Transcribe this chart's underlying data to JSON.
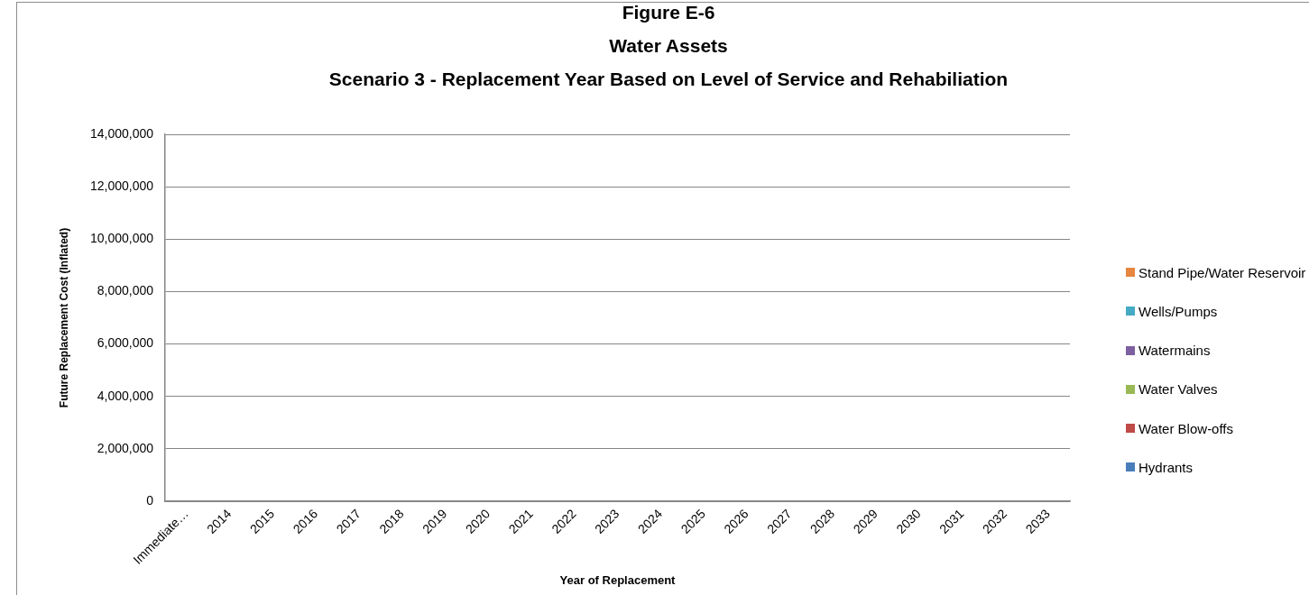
{
  "chart_data": {
    "type": "bar",
    "title": "Figure E-6\nWater Assets\nScenario 3 - Replacement Year Based on Level of Service and Rehabiliation",
    "xlabel": "Year of Replacement",
    "ylabel": "Future Replacement Cost (Inflated)",
    "categories": [
      "Immediate…",
      "2014",
      "2015",
      "2016",
      "2017",
      "2018",
      "2019",
      "2020",
      "2021",
      "2022",
      "2023",
      "2024",
      "2025",
      "2026",
      "2027",
      "2028",
      "2029",
      "2030",
      "2031",
      "2032",
      "2033"
    ],
    "series": [
      {
        "name": "Hydrants",
        "color": "#4a7ebb",
        "values": [
          0,
          0,
          0,
          0,
          0,
          0,
          0,
          0,
          0,
          0,
          0,
          0,
          0,
          0,
          0,
          0,
          0,
          0,
          0,
          0,
          0
        ]
      },
      {
        "name": "Water Blow-offs",
        "color": "#be4b48",
        "values": [
          0,
          0,
          0,
          0,
          0,
          0,
          0,
          0,
          0,
          0,
          0,
          0,
          0,
          0,
          0,
          0,
          0,
          0,
          0,
          0,
          0
        ]
      },
      {
        "name": "Water Valves",
        "color": "#98b954",
        "values": [
          0,
          0,
          0,
          0,
          0,
          0,
          0,
          0,
          0,
          0,
          0,
          0,
          0,
          0,
          0,
          0,
          0,
          0,
          0,
          0,
          0
        ]
      },
      {
        "name": "Watermains",
        "color": "#7d60a0",
        "values": [
          0,
          0,
          0,
          0,
          0,
          0,
          0,
          0,
          0,
          0,
          0,
          0,
          0,
          0,
          0,
          0,
          0,
          0,
          0,
          0,
          0
        ]
      },
      {
        "name": "Wells/Pumps",
        "color": "#46aac5",
        "values": [
          0,
          0,
          0,
          0,
          0,
          0,
          0,
          0,
          0,
          0,
          0,
          0,
          0,
          0,
          0,
          0,
          0,
          0,
          0,
          0,
          0
        ]
      },
      {
        "name": "Stand Pipe/Water Reservoir",
        "color": "#e6863f",
        "values": [
          0,
          0,
          0,
          0,
          0,
          0,
          0,
          0,
          0,
          0,
          0,
          0,
          0,
          0,
          0,
          0,
          0,
          0,
          0,
          0,
          0
        ]
      }
    ],
    "stacked": true,
    "ylim": [
      0,
      14000000
    ],
    "yticks": [
      0,
      {
        "value": 2000000,
        "label": "2,000,000"
      },
      {
        "value": 4000000,
        "label": "4,000,000"
      },
      {
        "value": 6000000,
        "label": "6,000,000"
      },
      {
        "value": 8000000,
        "label": "8,000,000"
      },
      {
        "value": 10000000,
        "label": "10,000,000"
      },
      {
        "value": 12000000,
        "label": "12,000,000"
      },
      {
        "value": 14000000,
        "label": "14,000,000"
      }
    ],
    "grid": "y",
    "legend": "right"
  }
}
